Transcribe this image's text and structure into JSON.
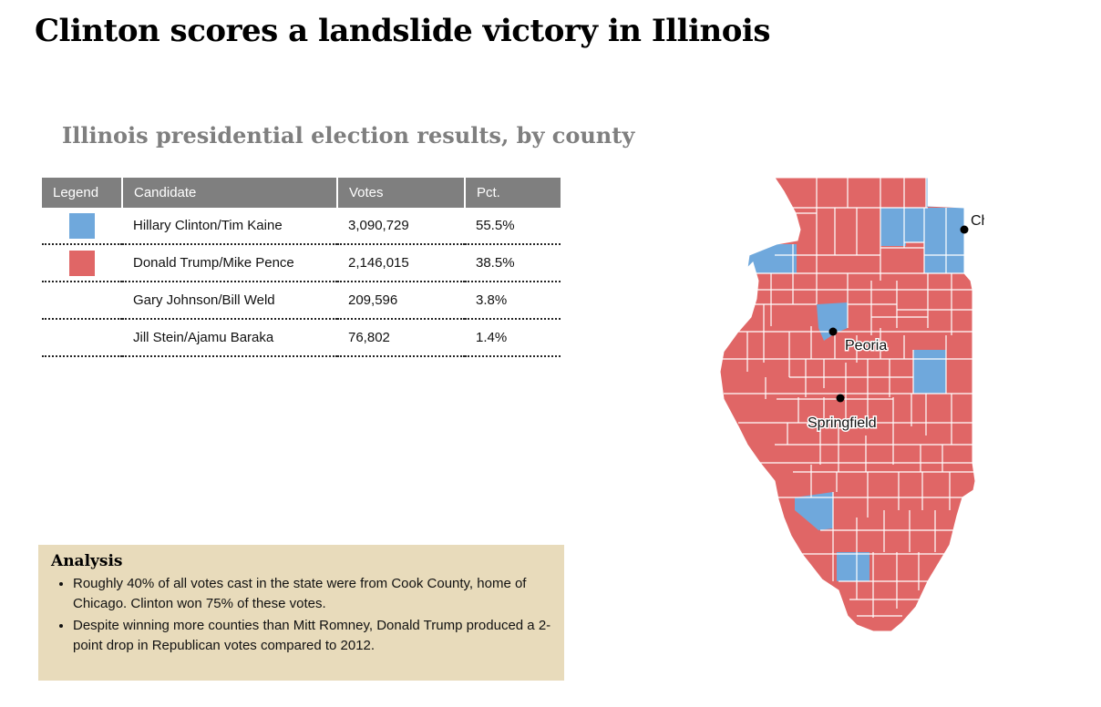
{
  "title": "Clinton scores a landslide victory in Illinois",
  "subtitle": "Illinois presidential election results, by county",
  "colors": {
    "clinton": "#6fa8dc",
    "trump": "#e06666",
    "header": "#7f7f7f",
    "analysis_bg": "#e8dbbb"
  },
  "table": {
    "headers": [
      "Legend",
      "Candidate",
      "Votes",
      "Pct."
    ],
    "rows": [
      {
        "candidate": "Hillary Clinton/Tim Kaine",
        "votes": "3,090,729",
        "pct": "55.5%",
        "color": "#6fa8dc"
      },
      {
        "candidate": "Donald Trump/Mike Pence",
        "votes": "2,146,015",
        "pct": "38.5%",
        "color": "#e06666"
      },
      {
        "candidate": "Gary Johnson/Bill Weld",
        "votes": "209,596",
        "pct": "3.8%",
        "color": ""
      },
      {
        "candidate": "Jill Stein/Ajamu Baraka",
        "votes": "76,802",
        "pct": "1.4%",
        "color": ""
      }
    ]
  },
  "analysis": {
    "heading": "Analysis",
    "bullets": [
      "Roughly 40% of all votes cast in the state were from Cook County, home of Chicago. Clinton won 75% of these votes.",
      "Despite winning more counties than Mitt Romney, Donald Trump produced a 2-point drop in Republican votes compared to 2012."
    ]
  },
  "map": {
    "cities": [
      "Chicago",
      "Peoria",
      "Springfield"
    ]
  }
}
